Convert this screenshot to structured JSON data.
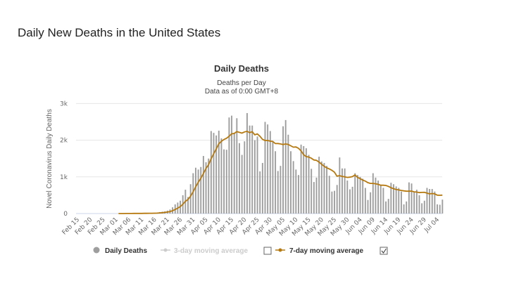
{
  "page": {
    "title": "Daily New Deaths in the United States"
  },
  "chart_data": {
    "type": "bar",
    "title": "Daily Deaths",
    "subtitle": "Deaths per Day",
    "subtitle2": "Data as of 0:00 GMT+8",
    "ylabel": "Novel Coronavirus Daily Deaths",
    "xlabel": "",
    "ylim": [
      0,
      3000
    ],
    "yticks": [
      "0",
      "1k",
      "2k",
      "3k"
    ],
    "grid": true,
    "legend_position": "bottom",
    "start_date": "Feb 15",
    "xtick_labels": [
      "Feb 15",
      "Feb 20",
      "Feb 25",
      "Mar 01",
      "Mar 06",
      "Mar 11",
      "Mar 16",
      "Mar 21",
      "Mar 26",
      "Mar 31",
      "Apr 05",
      "Apr 10",
      "Apr 15",
      "Apr 20",
      "Apr 25",
      "Apr 30",
      "May 05",
      "May 10",
      "May 15",
      "May 20",
      "May 25",
      "May 30",
      "Jun 04",
      "Jun 09",
      "Jun 14",
      "Jun 19",
      "Jun 24",
      "Jun 29",
      "Jul 04"
    ],
    "series": [
      {
        "name": "Daily Deaths",
        "type": "bar",
        "color": "#9e9e9e",
        "values": [
          0,
          0,
          0,
          0,
          0,
          0,
          0,
          0,
          0,
          0,
          0,
          0,
          0,
          0,
          0,
          0,
          1,
          1,
          3,
          2,
          3,
          4,
          7,
          3,
          6,
          6,
          10,
          7,
          10,
          11,
          18,
          23,
          40,
          50,
          60,
          80,
          110,
          170,
          250,
          300,
          350,
          500,
          650,
          450,
          800,
          1100,
          1250,
          1200,
          1270,
          1570,
          1400,
          1500,
          2250,
          2200,
          2130,
          2260,
          2050,
          1750,
          1740,
          2620,
          2670,
          2200,
          2600,
          1920,
          1600,
          1970,
          2740,
          2400,
          2400,
          2000,
          2100,
          1150,
          1380,
          2500,
          2430,
          2250,
          1950,
          1700,
          1160,
          1300,
          2380,
          2550,
          2150,
          1700,
          1430,
          1200,
          1050,
          1880,
          1840,
          1780,
          1600,
          1220,
          860,
          980,
          1550,
          1420,
          1380,
          1300,
          1030,
          600,
          620,
          780,
          1530,
          1230,
          1230,
          900,
          660,
          730,
          1100,
          1050,
          1000,
          950,
          700,
          370,
          580,
          1100,
          980,
          900,
          780,
          700,
          330,
          400,
          840,
          800,
          740,
          700,
          600,
          250,
          330,
          850,
          820,
          600,
          650,
          500,
          280,
          350,
          700,
          670,
          670,
          600,
          250,
          240,
          380
        ]
      },
      {
        "name": "3-day moving average",
        "type": "line",
        "color": "#cccccc",
        "visible": false
      },
      {
        "name": "7-day moving average",
        "type": "line",
        "color": "#b5790f",
        "visible": true
      }
    ],
    "legend": {
      "daily_checkbox_checked": null,
      "three_day_checked": false,
      "seven_day_checked": true
    }
  }
}
